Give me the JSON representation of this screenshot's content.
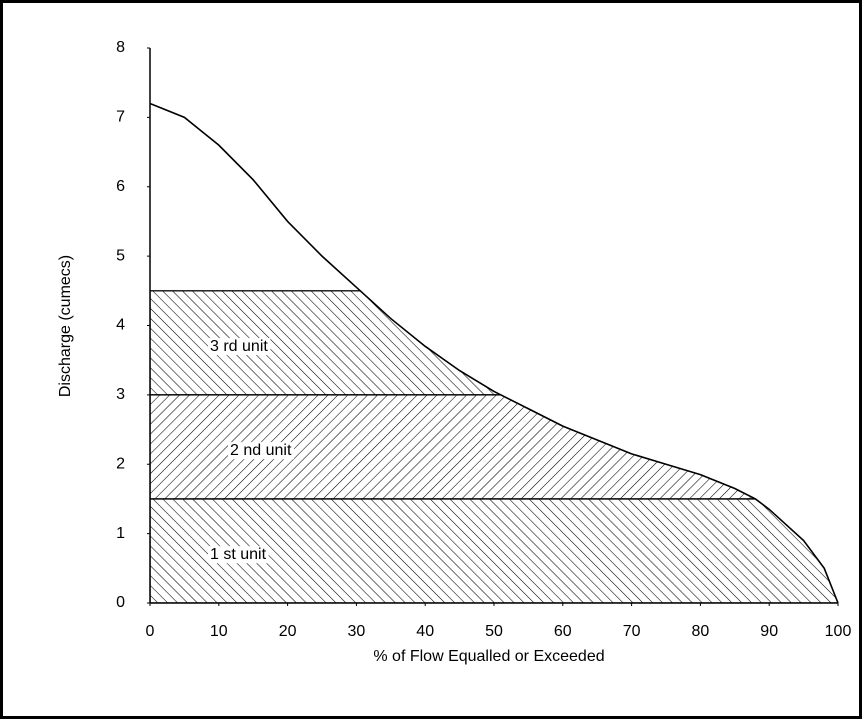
{
  "chart_data": {
    "type": "line",
    "xlabel": "% of Flow Equalled or Exceeded",
    "ylabel": "Discharge (cumecs)",
    "x": [
      0,
      5,
      10,
      15,
      20,
      25,
      30,
      35,
      40,
      45,
      50,
      55,
      60,
      65,
      70,
      75,
      80,
      85,
      88,
      90,
      95,
      98,
      100
    ],
    "y": [
      7.2,
      7.0,
      6.6,
      6.1,
      5.5,
      5.0,
      4.55,
      4.1,
      3.7,
      3.35,
      3.05,
      2.8,
      2.55,
      2.35,
      2.15,
      2.0,
      1.85,
      1.65,
      1.5,
      1.35,
      0.9,
      0.5,
      0
    ],
    "color": "#000000",
    "bands": [
      {
        "name": "1 st unit",
        "lower": 0,
        "upper": 1.5,
        "hatch": "backslash"
      },
      {
        "name": "2 nd unit",
        "lower": 1.5,
        "upper": 3,
        "hatch": "slash"
      },
      {
        "name": "3 rd unit",
        "lower": 3,
        "upper": 4.5,
        "hatch": "backslash"
      }
    ],
    "xlim": [
      0,
      100
    ],
    "xticks": [
      0,
      10,
      20,
      30,
      40,
      50,
      60,
      70,
      80,
      90,
      100
    ],
    "ylim": [
      0,
      8
    ],
    "yticks": [
      0,
      1,
      2,
      3,
      4,
      5,
      6,
      7,
      8
    ]
  }
}
